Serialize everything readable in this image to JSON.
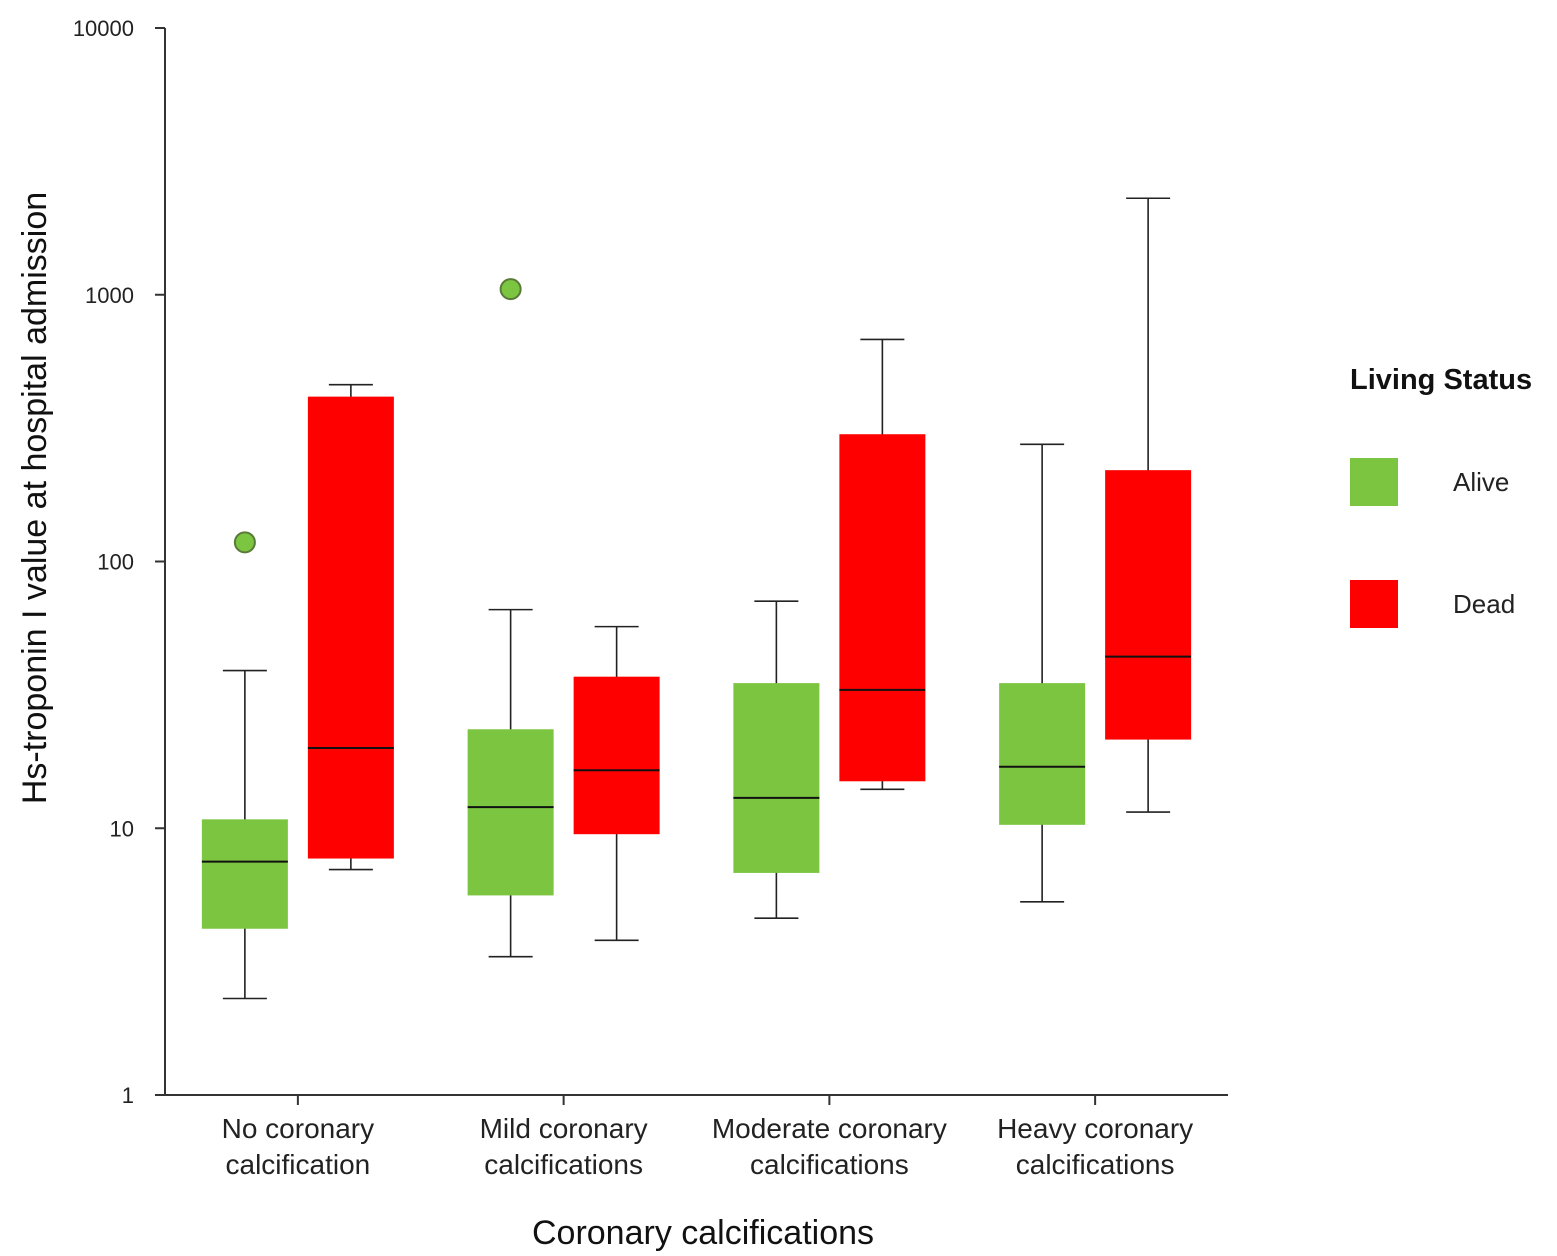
{
  "chart_data": {
    "type": "box",
    "xlabel": "Coronary calcifications",
    "ylabel": "Hs-troponin I value at hospital admission",
    "yscale": "log",
    "ylim": [
      1,
      10000
    ],
    "yticks": [
      "1",
      "10",
      "100",
      "1000",
      "10000"
    ],
    "grid": false,
    "legend": {
      "title": "Living Status",
      "position": "right",
      "entries": [
        {
          "name": "Alive",
          "color": "#7cc540"
        },
        {
          "name": "Dead",
          "color": "#ff0000"
        }
      ]
    },
    "categories": [
      [
        "No coronary",
        "calcification"
      ],
      [
        "Mild coronary",
        "calcifications"
      ],
      [
        "Moderate coronary",
        "calcifications"
      ],
      [
        "Heavy coronary",
        "calcifications"
      ]
    ],
    "series": [
      {
        "name": "Alive",
        "color": "#7cc540",
        "boxes": [
          {
            "whisker_low": 2.3,
            "q1": 4.2,
            "median": 7.5,
            "q3": 10.8,
            "whisker_high": 39,
            "outliers": [
              118
            ]
          },
          {
            "whisker_low": 3.3,
            "q1": 5.6,
            "median": 12,
            "q3": 23.5,
            "whisker_high": 66,
            "outliers": [
              1050
            ]
          },
          {
            "whisker_low": 4.6,
            "q1": 6.8,
            "median": 13,
            "q3": 35,
            "whisker_high": 71,
            "outliers": []
          },
          {
            "whisker_low": 5.3,
            "q1": 10.3,
            "median": 17,
            "q3": 35,
            "whisker_high": 275,
            "outliers": []
          }
        ]
      },
      {
        "name": "Dead",
        "color": "#ff0000",
        "boxes": [
          {
            "whisker_low": 7,
            "q1": 7.7,
            "median": 20,
            "q3": 415,
            "whisker_high": 460,
            "outliers": []
          },
          {
            "whisker_low": 3.8,
            "q1": 9.5,
            "median": 16.5,
            "q3": 37,
            "whisker_high": 57,
            "outliers": []
          },
          {
            "whisker_low": 14,
            "q1": 15,
            "median": 33,
            "q3": 300,
            "whisker_high": 680,
            "outliers": []
          },
          {
            "whisker_low": 11.5,
            "q1": 21.5,
            "median": 44,
            "q3": 220,
            "whisker_high": 2300,
            "outliers": []
          }
        ]
      }
    ]
  }
}
